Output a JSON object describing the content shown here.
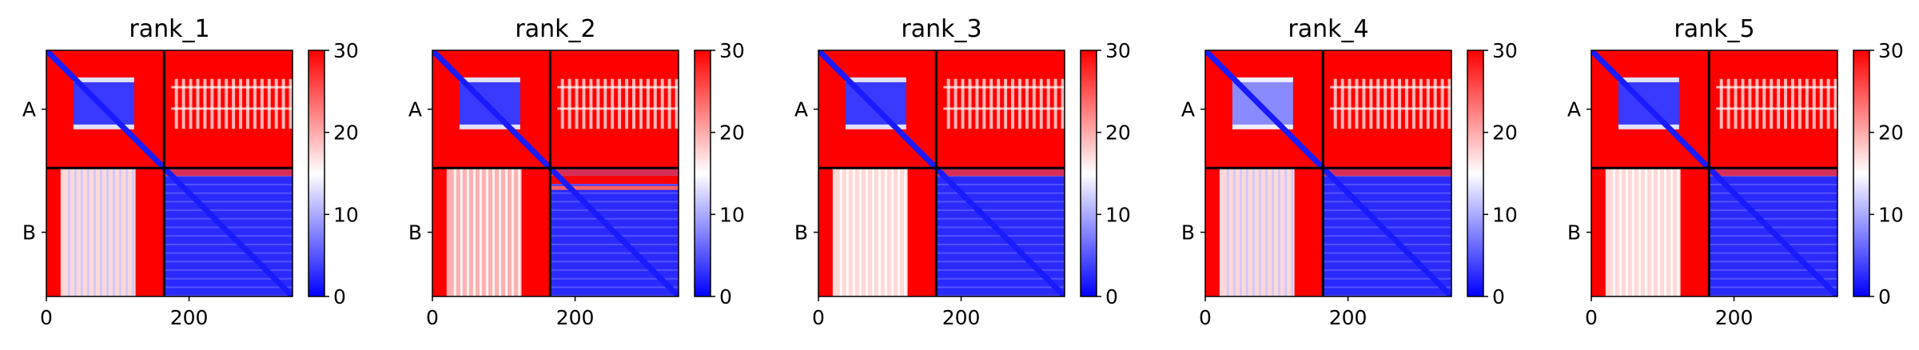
{
  "chart_data": [
    {
      "type": "heatmap",
      "title": "rank_1",
      "x_ticks": [
        0,
        200
      ],
      "xlim": [
        0,
        345
      ],
      "y_ticks": [
        "A",
        "B"
      ],
      "chain_boundary": 165,
      "colorbar": {
        "min": 0,
        "max": 30,
        "ticks": [
          0,
          10,
          20,
          30
        ],
        "colormap": [
          "#0000ff",
          "#ffffff",
          "#ff0000"
        ]
      },
      "regions": {
        "A_A": "low error inside folded domain (~40–120), high elsewhere",
        "A_B": "mostly high with lighter striping",
        "B_A": "high with a whitish band around residues ~20–120",
        "B_B": "low (blue) with faint horizontal striping"
      }
    },
    {
      "type": "heatmap",
      "title": "rank_2",
      "x_ticks": [
        0,
        200
      ],
      "xlim": [
        0,
        345
      ],
      "y_ticks": [
        "A",
        "B"
      ],
      "chain_boundary": 165,
      "colorbar": {
        "min": 0,
        "max": 30,
        "ticks": [
          0,
          10,
          20,
          30
        ],
        "colormap": [
          "#0000ff",
          "#ffffff",
          "#ff0000"
        ]
      },
      "regions": {
        "A_A": "low error inside folded domain (~40–120), high elsewhere",
        "A_B": "mostly high with lighter striping",
        "B_A": "high, lighter bands",
        "B_B": "low with a red band near rows 165–200"
      }
    },
    {
      "type": "heatmap",
      "title": "rank_3",
      "x_ticks": [
        0,
        200
      ],
      "xlim": [
        0,
        345
      ],
      "y_ticks": [
        "A",
        "B"
      ],
      "chain_boundary": 165,
      "colorbar": {
        "min": 0,
        "max": 30,
        "ticks": [
          0,
          10,
          20,
          30
        ],
        "colormap": [
          "#0000ff",
          "#ffffff",
          "#ff0000"
        ]
      },
      "regions": {
        "A_A": "low error inside folded domain (~40–120), high elsewhere",
        "A_B": "high with light vertical striping",
        "B_A": "high with whitish columns",
        "B_B": "low (blue)"
      }
    },
    {
      "type": "heatmap",
      "title": "rank_4",
      "x_ticks": [
        0,
        200
      ],
      "xlim": [
        0,
        345
      ],
      "y_ticks": [
        "A",
        "B"
      ],
      "chain_boundary": 165,
      "colorbar": {
        "min": 0,
        "max": 30,
        "ticks": [
          0,
          10,
          20,
          30
        ],
        "colormap": [
          "#0000ff",
          "#ffffff",
          "#ff0000"
        ]
      },
      "regions": {
        "A_A": "patchy low-error domain (~40–120), high elsewhere",
        "A_B": "high with light vertical striping",
        "B_A": "high with whitish columns",
        "B_B": "low (blue)"
      }
    },
    {
      "type": "heatmap",
      "title": "rank_5",
      "x_ticks": [
        0,
        200
      ],
      "xlim": [
        0,
        345
      ],
      "y_ticks": [
        "A",
        "B"
      ],
      "chain_boundary": 165,
      "colorbar": {
        "min": 0,
        "max": 30,
        "ticks": [
          0,
          10,
          20,
          30
        ],
        "colormap": [
          "#0000ff",
          "#ffffff",
          "#ff0000"
        ]
      },
      "regions": {
        "A_A": "low error inside folded domain (~40–120), high elsewhere",
        "A_B": "high with light vertical striping",
        "B_A": "high with whitish columns",
        "B_B": "low (blue)"
      }
    }
  ]
}
